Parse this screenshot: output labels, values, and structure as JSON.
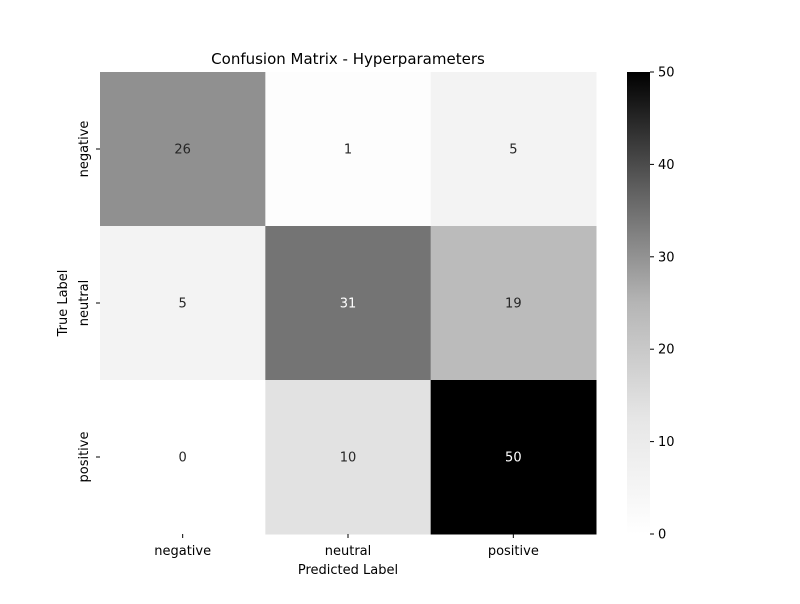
{
  "chart_data": {
    "type": "heatmap",
    "title": "Confusion Matrix - Hyperparameters",
    "xlabel": "Predicted Label",
    "ylabel": "True Label",
    "x_categories": [
      "negative",
      "neutral",
      "positive"
    ],
    "y_categories": [
      "negative",
      "neutral",
      "positive"
    ],
    "values": [
      [
        26,
        1,
        5
      ],
      [
        5,
        31,
        19
      ],
      [
        0,
        10,
        50
      ]
    ],
    "colorbar": {
      "min": 0,
      "max": 50,
      "ticks": [
        "0",
        "10",
        "20",
        "30",
        "40",
        "50"
      ],
      "colormap": "Greys"
    },
    "grid": false
  }
}
